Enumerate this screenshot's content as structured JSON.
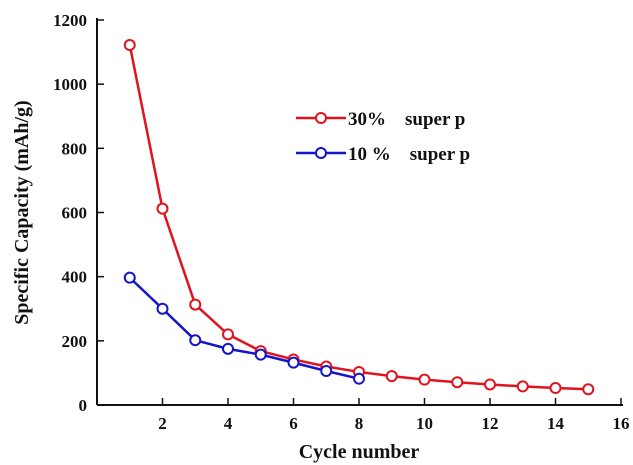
{
  "chart_data": {
    "type": "line",
    "xlabel": "Cycle number",
    "ylabel": "Specific Capacity (mAh/g)",
    "xlim": [
      0,
      16
    ],
    "ylim": [
      0,
      1200
    ],
    "xticks": [
      2,
      4,
      6,
      8,
      10,
      12,
      14,
      16
    ],
    "yticks": [
      0,
      200,
      400,
      600,
      800,
      1000,
      1200
    ],
    "grid": false,
    "legend_position": "upper-right",
    "series": [
      {
        "name": "30%    super p",
        "color": "#e0141e",
        "marker": "open-circle",
        "x": [
          1,
          2,
          3,
          4,
          5,
          6,
          7,
          8,
          9,
          10,
          11,
          12,
          13,
          14,
          15
        ],
        "y": [
          1122,
          612,
          313,
          220,
          168,
          142,
          120,
          103,
          90,
          79,
          71,
          64,
          58,
          53,
          49
        ]
      },
      {
        "name": "10 %    super p",
        "color": "#1414c8",
        "marker": "open-circle",
        "x": [
          1,
          2,
          3,
          4,
          5,
          6,
          7,
          8
        ],
        "y": [
          397,
          300,
          202,
          175,
          157,
          132,
          106,
          82
        ]
      }
    ]
  }
}
